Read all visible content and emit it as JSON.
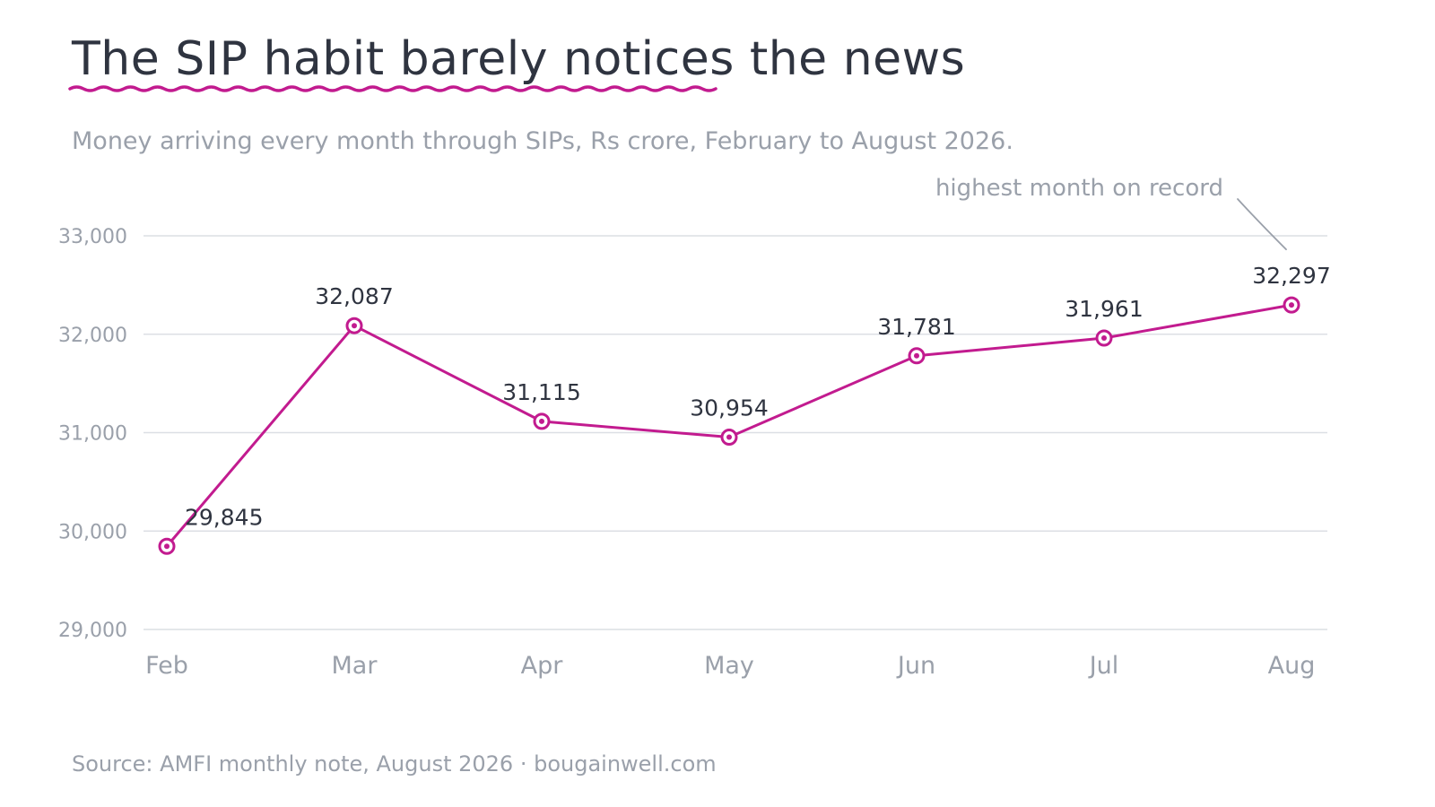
{
  "title": "The SIP habit barely notices the news",
  "subtitle": "Money arriving every month through SIPs, Rs crore, February to August 2026.",
  "source": "Source: AMFI monthly note, August 2026 · bougainwell.com",
  "colors": {
    "accent": "#c21b8f",
    "text": "#2f3440",
    "muted": "#9aa0aa",
    "grid": "#dcdfe4"
  },
  "chart_data": {
    "type": "line",
    "categories": [
      "Feb",
      "Mar",
      "Apr",
      "May",
      "Jun",
      "Jul",
      "Aug"
    ],
    "series": [
      {
        "values": [
          29845,
          32087,
          31115,
          30954,
          31781,
          31961,
          32297
        ]
      }
    ],
    "data_labels": [
      "29,845",
      "32,087",
      "31,115",
      "30,954",
      "31,781",
      "31,961",
      "32,297"
    ],
    "ylim": [
      29000,
      33000
    ],
    "yticks": [
      29000,
      30000,
      31000,
      32000,
      33000
    ],
    "ytick_labels": [
      "29,000",
      "30,000",
      "31,000",
      "32,000",
      "33,000"
    ],
    "xlabel": "",
    "ylabel": "",
    "grid": true,
    "legend": "none",
    "annotations": [
      {
        "text": "highest month on record",
        "category": "Aug"
      }
    ]
  }
}
